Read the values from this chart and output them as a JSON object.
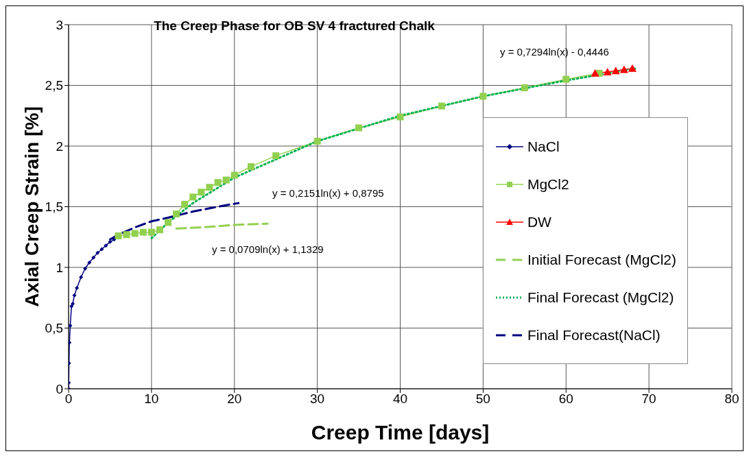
{
  "chart_data": {
    "type": "line",
    "title": "The Creep Phase for OB SV 4 fractured Chalk",
    "xlabel": "Creep Time [days]",
    "ylabel": "Axial Creep Strain [%]",
    "xlim": [
      0,
      80
    ],
    "xticks": [
      0,
      10,
      20,
      30,
      40,
      50,
      60,
      70,
      80
    ],
    "ylim": [
      0,
      3
    ],
    "yticks": [
      0,
      {
        "value": 0.5,
        "label": "0,5"
      },
      1,
      {
        "value": 1.5,
        "label": "1,5"
      },
      2,
      {
        "value": 2.5,
        "label": "2,5"
      },
      3
    ],
    "grid": true,
    "legend": "right",
    "series": [
      {
        "name": "NaCl",
        "color": "#000080",
        "marker": "diamond",
        "line_style": "solid",
        "x": [
          0,
          0.02,
          0.05,
          0.1,
          0.2,
          0.35,
          0.5,
          0.7,
          1,
          1.5,
          2,
          2.5,
          3,
          3.5,
          4,
          4.5,
          5,
          5.5
        ],
        "values": [
          0,
          0.05,
          0.21,
          0.38,
          0.52,
          0.68,
          0.7,
          0.77,
          0.83,
          0.92,
          0.99,
          1.04,
          1.08,
          1.12,
          1.15,
          1.18,
          1.21,
          1.23
        ]
      },
      {
        "name": "MgCl2",
        "color": "#92d050",
        "marker": "square",
        "line_style": "solid",
        "x": [
          6,
          7,
          8,
          9,
          10,
          11,
          12,
          13,
          14,
          15,
          16,
          17,
          18,
          19,
          20,
          22,
          25,
          30,
          35,
          40,
          45,
          50,
          55,
          60,
          64
        ],
        "values": [
          1.26,
          1.27,
          1.28,
          1.29,
          1.29,
          1.31,
          1.37,
          1.44,
          1.52,
          1.58,
          1.62,
          1.66,
          1.7,
          1.72,
          1.76,
          1.83,
          1.92,
          2.04,
          2.15,
          2.24,
          2.33,
          2.41,
          2.48,
          2.55,
          2.6
        ]
      },
      {
        "name": "DW",
        "color": "#ff0000",
        "marker": "triangle",
        "line_style": "solid",
        "x": [
          63.5,
          65,
          66,
          67,
          68
        ],
        "values": [
          2.6,
          2.61,
          2.62,
          2.63,
          2.64
        ]
      },
      {
        "name": "Initial Forecast (MgCl2)",
        "color": "#92d050",
        "marker": "none",
        "line_style": "dashed",
        "x": [
          13,
          16,
          20,
          24
        ],
        "values": [
          1.32,
          1.33,
          1.35,
          1.36
        ]
      },
      {
        "name": "Final Forecast (MgCl2)",
        "color": "#00b050",
        "marker": "none",
        "line_style": "dotted",
        "x": [
          10,
          12,
          15,
          20,
          30,
          40,
          50,
          60,
          68.5
        ],
        "values": [
          1.24,
          1.37,
          1.53,
          1.74,
          2.04,
          2.25,
          2.41,
          2.54,
          2.64
        ]
      },
      {
        "name": "Final Forecast(NaCl)",
        "color": "#000080",
        "marker": "none",
        "line_style": "dashed",
        "x": [
          5,
          6,
          8,
          10,
          12,
          15,
          18,
          20.5
        ],
        "values": [
          1.23,
          1.27,
          1.33,
          1.38,
          1.41,
          1.46,
          1.5,
          1.53
        ]
      }
    ],
    "annotations": [
      "y = 0,7294ln(x) - 0,4446",
      "y = 0,2151ln(x) + 0,8795",
      "y = 0,0709ln(x) + 1,1329"
    ]
  }
}
